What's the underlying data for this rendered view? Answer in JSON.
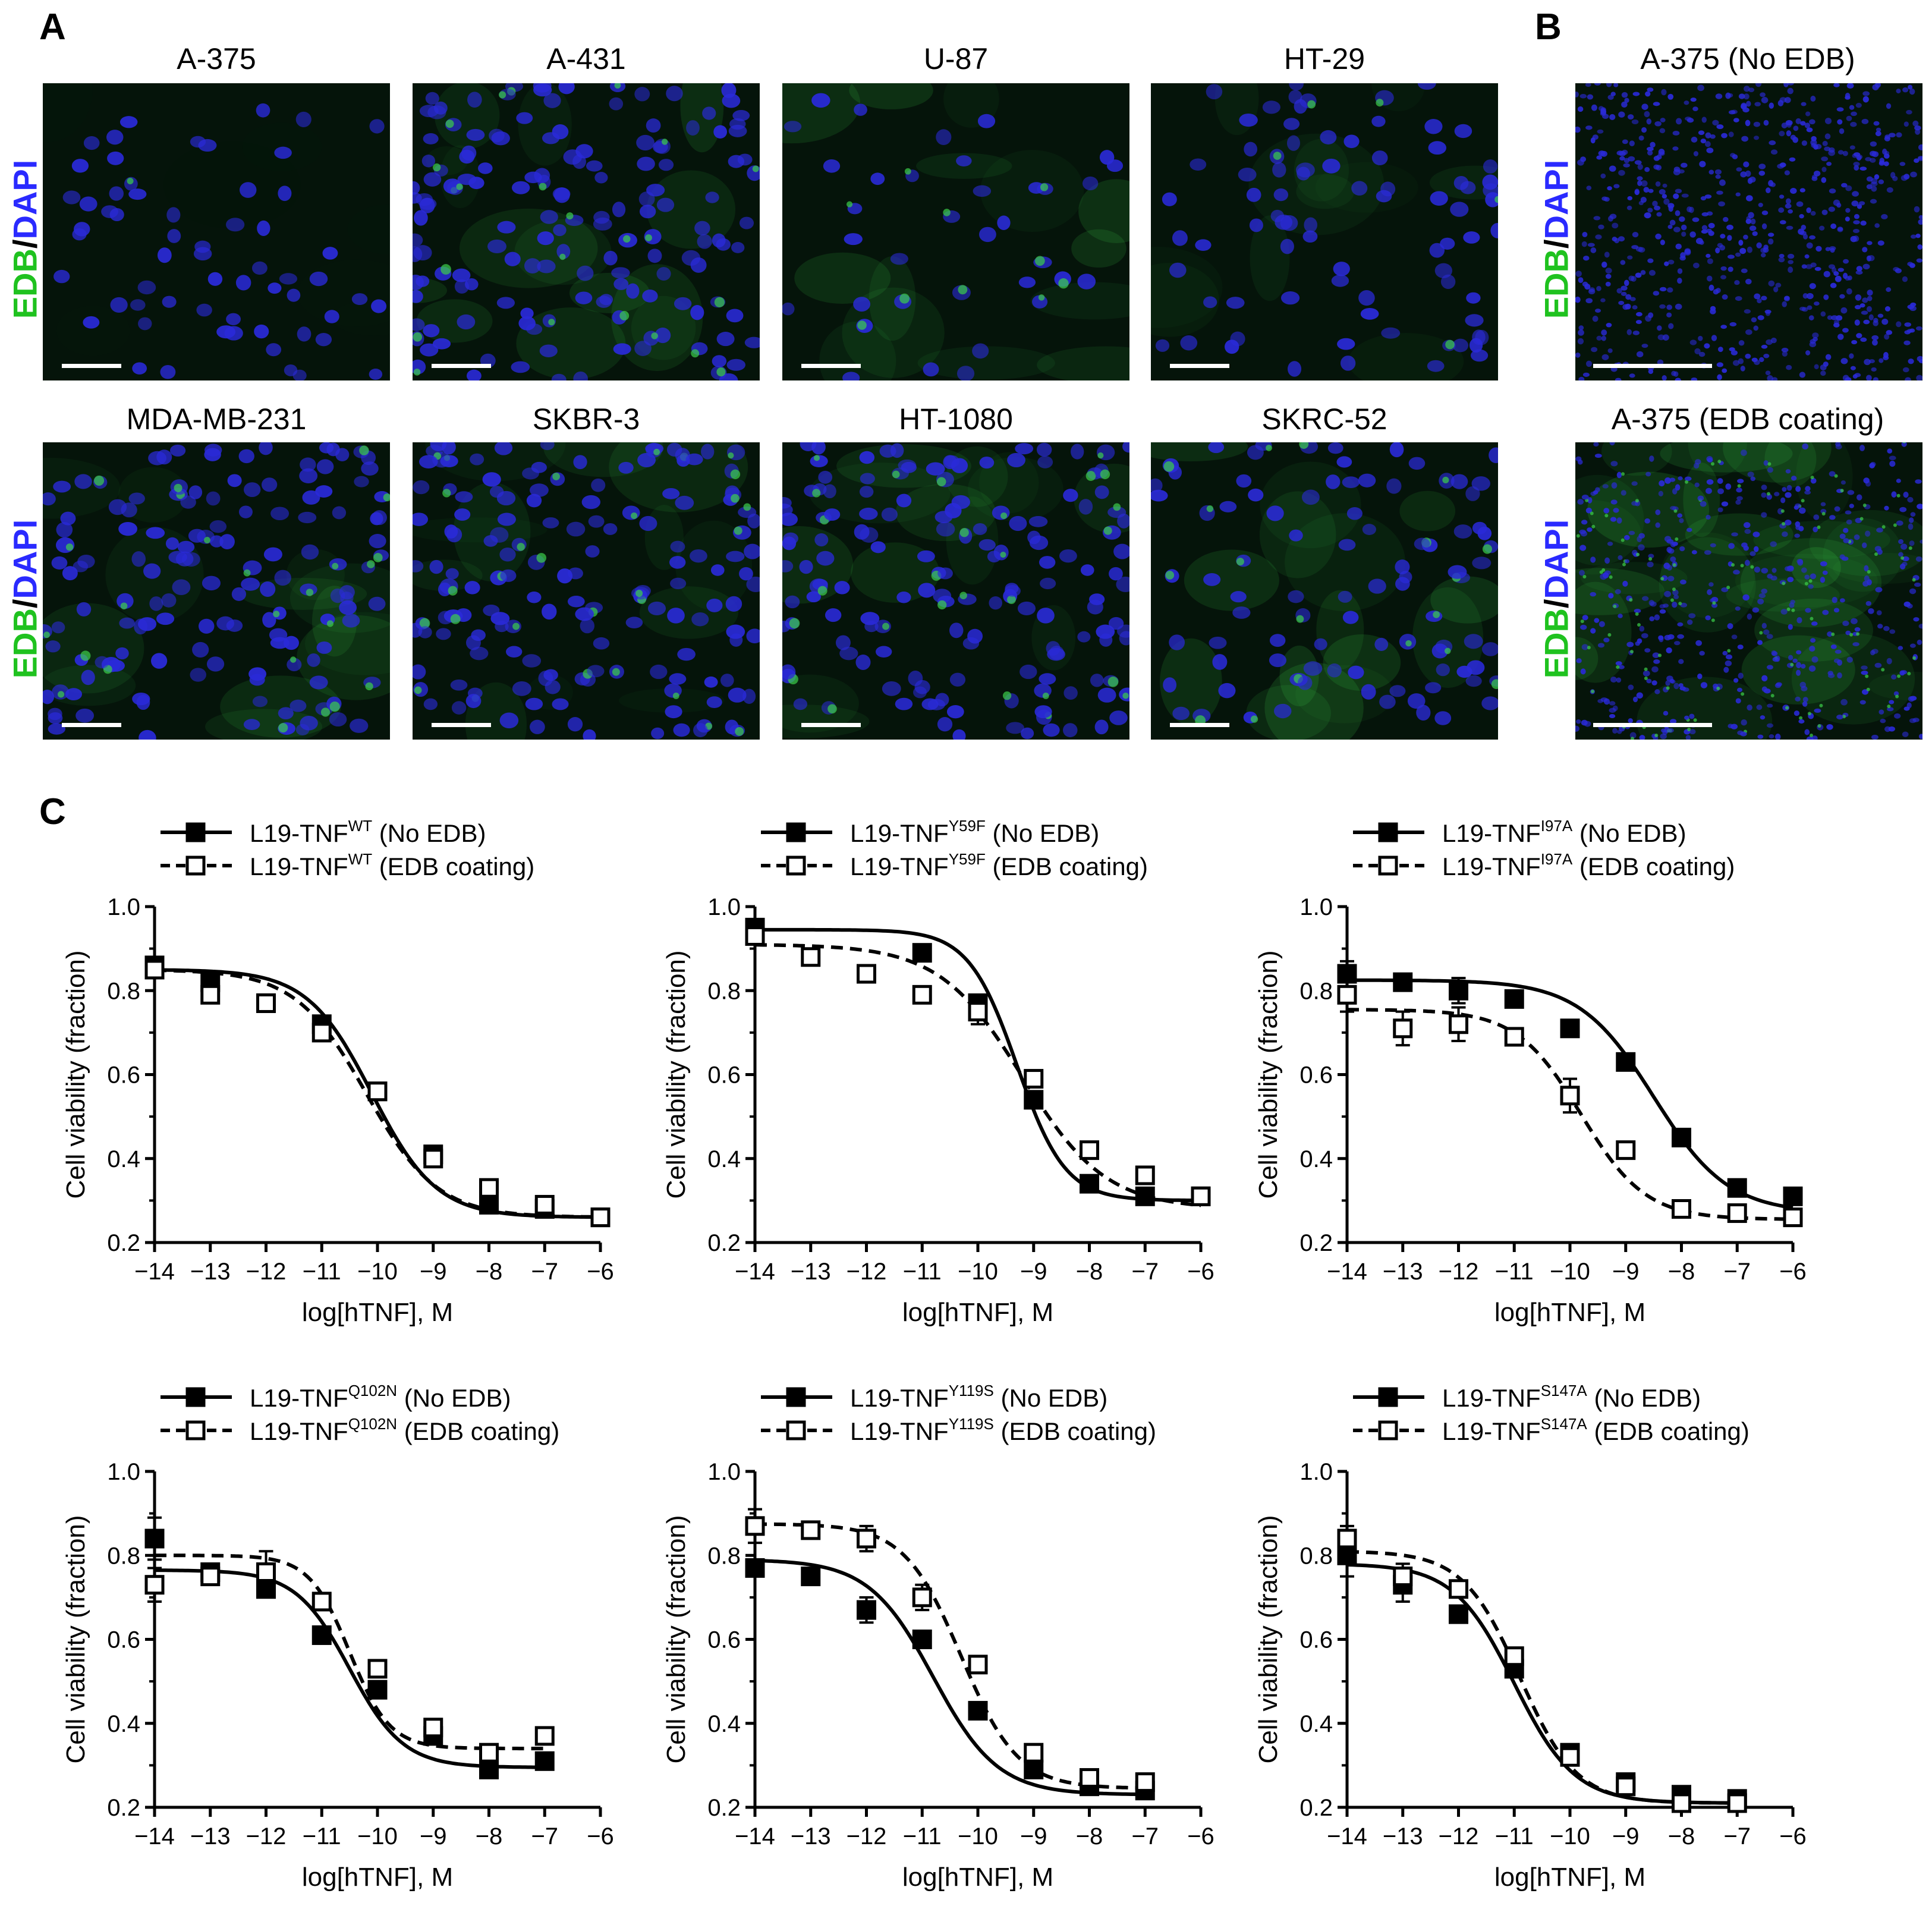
{
  "panel_labels": {
    "a": "A",
    "b": "B",
    "c": "C"
  },
  "stain_label": {
    "edb": "EDB",
    "slash": "/",
    "dapi": "DAPI"
  },
  "panel_a": {
    "row1": [
      "A-375",
      "A-431",
      "U-87",
      "HT-29"
    ],
    "row2": [
      "MDA-MB-231",
      "SKBR-3",
      "HT-1080",
      "SKRC-52"
    ]
  },
  "panel_b": {
    "top": "A-375 (No EDB)",
    "bottom": "A-375 (EDB coating)"
  },
  "colors": {
    "image_bg": "#05140a",
    "nucleus": "#2a2ad8",
    "edb_green": "#3ccf4a",
    "scalebar": "#ffffff"
  },
  "chart_data": [
    {
      "type": "line",
      "legend": [
        {
          "prefix": "L19-TNF",
          "superscript": "WT",
          "suffix": " (No EDB)",
          "marker": "filled-square",
          "line": "solid"
        },
        {
          "prefix": "L19-TNF",
          "superscript": "WT",
          "suffix": " (EDB coating)",
          "marker": "open-square",
          "line": "dashed"
        }
      ],
      "xlabel": "log[hTNF], M",
      "ylabel": "Cell viability (fraction)",
      "xlim": [
        -14,
        -6
      ],
      "ylim": [
        0.2,
        1.0
      ],
      "xticks": [
        "-14",
        "-13",
        "-12",
        "-11",
        "-10",
        "-9",
        "-8",
        "-7",
        "-6"
      ],
      "yticks": [
        "0.2",
        "0.4",
        "0.6",
        "0.8",
        "1.0"
      ],
      "series": [
        {
          "x": [
            -14,
            -13,
            -12,
            -11,
            -10,
            -9,
            -8,
            -7,
            -6
          ],
          "y": [
            0.86,
            0.82,
            0.77,
            0.72,
            0.56,
            0.41,
            0.29,
            0.28,
            0.26
          ],
          "err": [
            0.02,
            0.01,
            0.01,
            0.02,
            0.01,
            0.01,
            0.01,
            0.01,
            0.01
          ],
          "fit": {
            "top": 0.85,
            "bottom": 0.26,
            "logec50": -10.1,
            "hill": 0.75
          }
        },
        {
          "x": [
            -14,
            -13,
            -12,
            -11,
            -10,
            -9,
            -8,
            -7,
            -6
          ],
          "y": [
            0.85,
            0.79,
            0.77,
            0.7,
            0.56,
            0.4,
            0.33,
            0.29,
            0.26
          ],
          "err": [
            0.01,
            0.01,
            0.01,
            0.01,
            0.01,
            0.01,
            0.01,
            0.01,
            0.01
          ],
          "fit": {
            "top": 0.85,
            "bottom": 0.26,
            "logec50": -10.2,
            "hill": 0.68
          }
        }
      ]
    },
    {
      "type": "line",
      "legend": [
        {
          "prefix": "L19-TNF",
          "superscript": "Y59F",
          "suffix": " (No EDB)",
          "marker": "filled-square",
          "line": "solid"
        },
        {
          "prefix": "L19-TNF",
          "superscript": "Y59F",
          "suffix": " (EDB coating)",
          "marker": "open-square",
          "line": "dashed"
        }
      ],
      "xlabel": "log[hTNF], M",
      "ylabel": "Cell viability (fraction)",
      "xlim": [
        -14,
        -6
      ],
      "ylim": [
        0.2,
        1.0
      ],
      "xticks": [
        "-14",
        "-13",
        "-12",
        "-11",
        "-10",
        "-9",
        "-8",
        "-7",
        "-6"
      ],
      "yticks": [
        "0.2",
        "0.4",
        "0.6",
        "0.8",
        "1.0"
      ],
      "series": [
        {
          "x": [
            -14,
            -11,
            -10,
            -9,
            -8,
            -7,
            -6
          ],
          "y": [
            0.95,
            0.89,
            0.77,
            0.54,
            0.34,
            0.31,
            0.31
          ],
          "err": [
            0.02,
            0.01,
            0.01,
            0.01,
            0.01,
            0.01,
            0.01
          ],
          "fit": {
            "top": 0.945,
            "bottom": 0.3,
            "logec50": -9.3,
            "hill": 1.0
          }
        },
        {
          "x": [
            -14,
            -13,
            -12,
            -11,
            -10,
            -9,
            -8,
            -7,
            -6
          ],
          "y": [
            0.93,
            0.88,
            0.84,
            0.79,
            0.75,
            0.59,
            0.42,
            0.36,
            0.31
          ],
          "err": [
            0.01,
            0.01,
            0.01,
            0.01,
            0.03,
            0.01,
            0.01,
            0.01,
            0.01
          ],
          "fit": {
            "top": 0.91,
            "bottom": 0.28,
            "logec50": -9.2,
            "hill": 0.58
          }
        }
      ]
    },
    {
      "type": "line",
      "legend": [
        {
          "prefix": "L19-TNF",
          "superscript": "I97A",
          "suffix": " (No EDB)",
          "marker": "filled-square",
          "line": "solid"
        },
        {
          "prefix": "L19-TNF",
          "superscript": "I97A",
          "suffix": " (EDB coating)",
          "marker": "open-square",
          "line": "dashed"
        }
      ],
      "xlabel": "log[hTNF], M",
      "ylabel": "Cell viability (fraction)",
      "xlim": [
        -14,
        -6
      ],
      "ylim": [
        0.2,
        1.0
      ],
      "xticks": [
        "-14",
        "-13",
        "-12",
        "-11",
        "-10",
        "-9",
        "-8",
        "-7",
        "-6"
      ],
      "yticks": [
        "0.2",
        "0.4",
        "0.6",
        "0.8",
        "1.0"
      ],
      "series": [
        {
          "x": [
            -14,
            -13,
            -12,
            -11,
            -10,
            -9,
            -8,
            -7,
            -6
          ],
          "y": [
            0.84,
            0.82,
            0.8,
            0.78,
            0.71,
            0.63,
            0.45,
            0.33,
            0.31
          ],
          "err": [
            0.03,
            0.01,
            0.03,
            0.01,
            0.01,
            0.01,
            0.01,
            0.01,
            0.02
          ],
          "fit": {
            "top": 0.825,
            "bottom": 0.27,
            "logec50": -8.5,
            "hill": 0.65
          }
        },
        {
          "x": [
            -14,
            -13,
            -12,
            -11,
            -10,
            -9,
            -8,
            -7,
            -6
          ],
          "y": [
            0.79,
            0.71,
            0.72,
            0.69,
            0.55,
            0.42,
            0.28,
            0.27,
            0.26
          ],
          "err": [
            0.04,
            0.04,
            0.04,
            0.01,
            0.04,
            0.01,
            0.01,
            0.01,
            0.01
          ],
          "fit": {
            "top": 0.755,
            "bottom": 0.255,
            "logec50": -9.8,
            "hill": 0.75
          }
        }
      ]
    },
    {
      "type": "line",
      "legend": [
        {
          "prefix": "L19-TNF",
          "superscript": "Q102N",
          "suffix": " (No EDB)",
          "marker": "filled-square",
          "line": "solid"
        },
        {
          "prefix": "L19-TNF",
          "superscript": "Q102N",
          "suffix": " (EDB coating)",
          "marker": "open-square",
          "line": "dashed"
        }
      ],
      "xlabel": "log[hTNF], M",
      "ylabel": "Cell viability (fraction)",
      "xlim": [
        -14,
        -6
      ],
      "ylim": [
        0.2,
        1.0
      ],
      "xticks": [
        "-14",
        "-13",
        "-12",
        "-11",
        "-10",
        "-9",
        "-8",
        "-7",
        "-6"
      ],
      "yticks": [
        "0.2",
        "0.4",
        "0.6",
        "0.8",
        "1.0"
      ],
      "series": [
        {
          "x": [
            -14,
            -13,
            -12,
            -11,
            -10,
            -9,
            -8,
            -7
          ],
          "y": [
            0.84,
            0.76,
            0.72,
            0.61,
            0.48,
            0.37,
            0.29,
            0.31
          ],
          "err": [
            0.05,
            0.02,
            0.02,
            0.02,
            0.02,
            0.01,
            0.01,
            0.01
          ],
          "fit": {
            "top": 0.765,
            "bottom": 0.295,
            "logec50": -10.5,
            "hill": 0.9
          }
        },
        {
          "x": [
            -14,
            -13,
            -12,
            -11,
            -10,
            -9,
            -8,
            -7
          ],
          "y": [
            0.73,
            0.75,
            0.76,
            0.69,
            0.53,
            0.39,
            0.33,
            0.37
          ],
          "err": [
            0.04,
            0.02,
            0.05,
            0.01,
            0.02,
            0.01,
            0.01,
            0.01
          ],
          "fit": {
            "top": 0.8,
            "bottom": 0.34,
            "logec50": -10.5,
            "hill": 1.2
          }
        }
      ]
    },
    {
      "type": "line",
      "legend": [
        {
          "prefix": "L19-TNF",
          "superscript": "Y119S",
          "suffix": " (No EDB)",
          "marker": "filled-square",
          "line": "solid"
        },
        {
          "prefix": "L19-TNF",
          "superscript": "Y119S",
          "suffix": " (EDB coating)",
          "marker": "open-square",
          "line": "dashed"
        }
      ],
      "xlabel": "log[hTNF], M",
      "ylabel": "Cell viability (fraction)",
      "xlim": [
        -14,
        -6
      ],
      "ylim": [
        0.2,
        1.0
      ],
      "xticks": [
        "-14",
        "-13",
        "-12",
        "-11",
        "-10",
        "-9",
        "-8",
        "-7",
        "-6"
      ],
      "yticks": [
        "0.2",
        "0.4",
        "0.6",
        "0.8",
        "1.0"
      ],
      "series": [
        {
          "x": [
            -14,
            -13,
            -12,
            -11,
            -10,
            -9,
            -8,
            -7
          ],
          "y": [
            0.77,
            0.75,
            0.67,
            0.6,
            0.43,
            0.29,
            0.25,
            0.24
          ],
          "err": [
            0.01,
            0.01,
            0.03,
            0.01,
            0.01,
            0.01,
            0.01,
            0.01
          ],
          "fit": {
            "top": 0.79,
            "bottom": 0.23,
            "logec50": -10.8,
            "hill": 0.75
          }
        },
        {
          "x": [
            -14,
            -13,
            -12,
            -11,
            -10,
            -9,
            -8,
            -7
          ],
          "y": [
            0.87,
            0.86,
            0.84,
            0.7,
            0.54,
            0.33,
            0.27,
            0.26
          ],
          "err": [
            0.04,
            0.01,
            0.03,
            0.03,
            0.01,
            0.01,
            0.01,
            0.01
          ],
          "fit": {
            "top": 0.875,
            "bottom": 0.245,
            "logec50": -10.3,
            "hill": 0.85
          }
        }
      ]
    },
    {
      "type": "line",
      "legend": [
        {
          "prefix": "L19-TNF",
          "superscript": "S147A",
          "suffix": " (No EDB)",
          "marker": "filled-square",
          "line": "solid"
        },
        {
          "prefix": "L19-TNF",
          "superscript": "S147A",
          "suffix": " (EDB coating)",
          "marker": "open-square",
          "line": "dashed"
        }
      ],
      "xlabel": "log[hTNF], M",
      "ylabel": "Cell viability (fraction)",
      "xlim": [
        -14,
        -6
      ],
      "ylim": [
        0.2,
        1.0
      ],
      "xticks": [
        "-14",
        "-13",
        "-12",
        "-11",
        "-10",
        "-9",
        "-8",
        "-7",
        "-6"
      ],
      "yticks": [
        "0.2",
        "0.4",
        "0.6",
        "0.8",
        "1.0"
      ],
      "series": [
        {
          "x": [
            -14,
            -13,
            -12,
            -11,
            -10,
            -9,
            -8,
            -7
          ],
          "y": [
            0.8,
            0.73,
            0.66,
            0.53,
            0.33,
            0.26,
            0.23,
            0.22
          ],
          "err": [
            0.05,
            0.04,
            0.02,
            0.01,
            0.01,
            0.01,
            0.01,
            0.01
          ],
          "fit": {
            "top": 0.78,
            "bottom": 0.21,
            "logec50": -11.0,
            "hill": 0.8
          }
        },
        {
          "x": [
            -14,
            -13,
            -12,
            -11,
            -10,
            -9,
            -8,
            -7
          ],
          "y": [
            0.84,
            0.75,
            0.72,
            0.56,
            0.32,
            0.25,
            0.21,
            0.21
          ],
          "err": [
            0.03,
            0.03,
            0.01,
            0.01,
            0.01,
            0.01,
            0.01,
            0.01
          ],
          "fit": {
            "top": 0.81,
            "bottom": 0.21,
            "logec50": -10.9,
            "hill": 0.85
          }
        }
      ]
    }
  ]
}
